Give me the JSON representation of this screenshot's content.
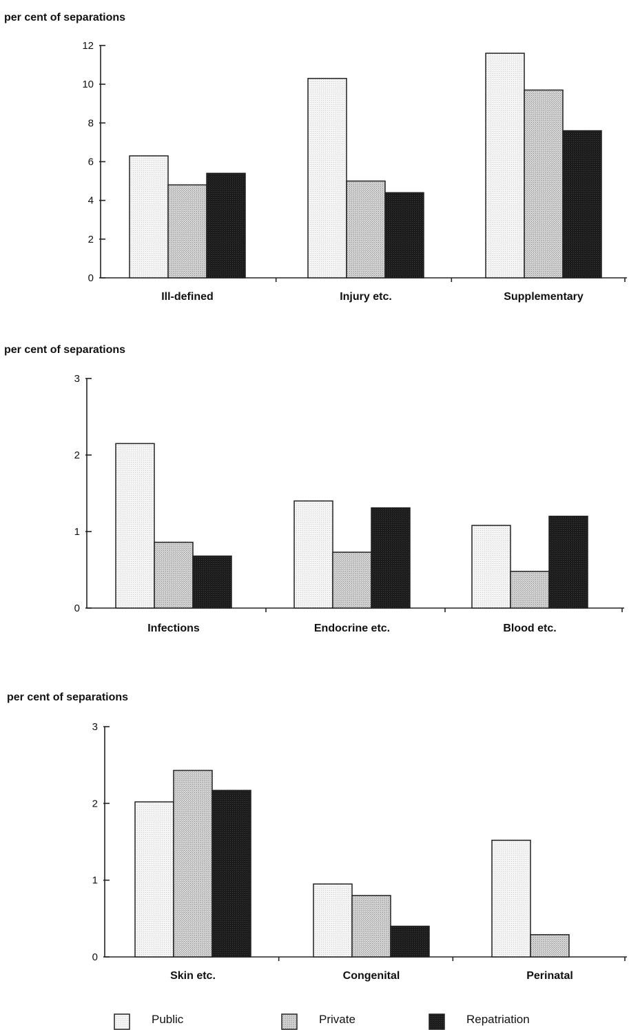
{
  "chart_data": [
    {
      "type": "bar",
      "ylabel": "per cent of separations",
      "ylim": [
        0,
        12
      ],
      "yticks": [
        "0",
        "2",
        "4",
        "6",
        "8",
        "10",
        "12"
      ],
      "categories": [
        "Ill-defined",
        "Injury etc.",
        "Supplementary"
      ],
      "series": [
        {
          "name": "Public",
          "values": [
            6.3,
            10.3,
            11.6
          ]
        },
        {
          "name": "Private",
          "values": [
            4.8,
            5.0,
            9.7
          ]
        },
        {
          "name": "Repatriation",
          "values": [
            5.4,
            4.4,
            7.6
          ]
        }
      ]
    },
    {
      "type": "bar",
      "ylabel": "per cent of separations",
      "ylim": [
        0,
        3
      ],
      "yticks": [
        "0",
        "1",
        "2",
        "3"
      ],
      "categories": [
        "Infections",
        "Endocrine etc.",
        "Blood etc."
      ],
      "series": [
        {
          "name": "Public",
          "values": [
            2.15,
            1.4,
            1.08
          ]
        },
        {
          "name": "Private",
          "values": [
            0.86,
            0.73,
            0.48
          ]
        },
        {
          "name": "Repatriation",
          "values": [
            0.68,
            1.31,
            1.2
          ]
        }
      ]
    },
    {
      "type": "bar",
      "ylabel": "per cent of separations",
      "ylim": [
        0,
        3
      ],
      "yticks": [
        "0",
        "1",
        "2",
        "3"
      ],
      "categories": [
        "Skin etc.",
        "Congenital",
        "Perinatal"
      ],
      "series": [
        {
          "name": "Public",
          "values": [
            2.02,
            0.95,
            1.52
          ]
        },
        {
          "name": "Private",
          "values": [
            2.43,
            0.8,
            0.29
          ]
        },
        {
          "name": "Repatriation",
          "values": [
            2.17,
            0.4,
            0
          ]
        }
      ]
    }
  ],
  "legend": {
    "position": "bottom",
    "items": [
      {
        "label": "Public",
        "color": "#efefef"
      },
      {
        "label": "Private",
        "color": "#c9c9c9"
      },
      {
        "label": "Repatriation",
        "color": "#1e1e1e"
      }
    ]
  },
  "colors": {
    "public": "#efefef",
    "private": "#c9c9c9",
    "repatriation": "#1e1e1e"
  }
}
